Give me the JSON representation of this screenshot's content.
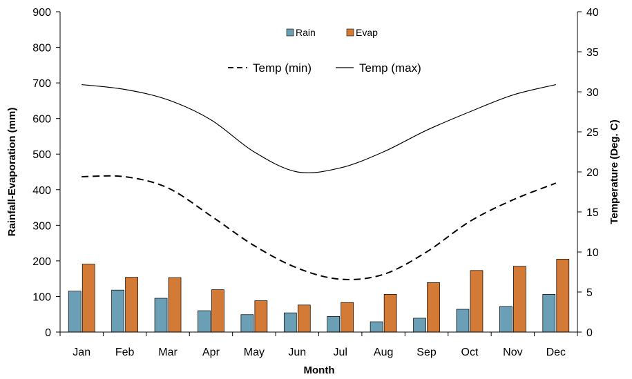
{
  "chart_data": {
    "type": "bar",
    "categories": [
      "Jan",
      "Feb",
      "Mar",
      "Apr",
      "May",
      "Jun",
      "Jul",
      "Aug",
      "Sep",
      "Oct",
      "Nov",
      "Dec"
    ],
    "xlabel": "Month",
    "ylabel_left": "Rainfall-Evaporation (mm)",
    "ylabel_right": "Temperature (Deg. C)",
    "ylim_left": [
      0,
      900
    ],
    "yticks_left": [
      "0",
      "100",
      "200",
      "300",
      "400",
      "500",
      "600",
      "700",
      "800",
      "900"
    ],
    "ylim_right": [
      0,
      40
    ],
    "yticks_right": [
      "0",
      "5",
      "10",
      "15",
      "20",
      "25",
      "30",
      "35",
      "40"
    ],
    "grid": false,
    "legend": "top-center",
    "bar_series": [
      {
        "name": "Rain",
        "color": "#6a9fb5",
        "axis": "left",
        "values": [
          115,
          118,
          95,
          60,
          49,
          54,
          44,
          29,
          39,
          64,
          72,
          106
        ]
      },
      {
        "name": "Evap",
        "color": "#d27a36",
        "axis": "left",
        "values": [
          191,
          154,
          153,
          119,
          88,
          76,
          83,
          106,
          139,
          173,
          185,
          205
        ]
      }
    ],
    "line_series": [
      {
        "name": "Temp (min)",
        "style": "dashed",
        "axis": "right",
        "values": [
          19.4,
          19.4,
          18.0,
          14.5,
          10.8,
          8.0,
          6.6,
          7.2,
          10.0,
          13.8,
          16.5,
          18.6
        ]
      },
      {
        "name": "Temp (max)",
        "style": "solid",
        "axis": "right",
        "values": [
          30.9,
          30.3,
          29.0,
          26.5,
          22.5,
          20.0,
          20.5,
          22.5,
          25.2,
          27.5,
          29.6,
          30.9
        ]
      }
    ]
  }
}
